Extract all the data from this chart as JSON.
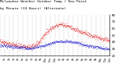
{
  "title_line1": "Milwaukee Weather Outdoor Temp / Dew Point",
  "title_line2": "by Minute",
  "title_line3": "(24 Hours) (Alternate)",
  "title_fontsize": 3.2,
  "bg_color": "#ffffff",
  "plot_bg_color": "#ffffff",
  "grid_color": "#888888",
  "temp_color": "#dd0000",
  "dew_color": "#0000cc",
  "ylabel_color": "#000000",
  "ylim": [
    20,
    80
  ],
  "xlim": [
    0,
    1440
  ],
  "yticks": [
    20,
    30,
    40,
    50,
    60,
    70,
    80
  ],
  "ytick_labels": [
    "20",
    "30",
    "40",
    "50",
    "60",
    "70",
    "80"
  ],
  "marker_size": 0.5,
  "temp_profile": [
    [
      0,
      42
    ],
    [
      60,
      40
    ],
    [
      120,
      38
    ],
    [
      180,
      37
    ],
    [
      240,
      35
    ],
    [
      300,
      34
    ],
    [
      360,
      33
    ],
    [
      420,
      34
    ],
    [
      480,
      37
    ],
    [
      540,
      44
    ],
    [
      570,
      49
    ],
    [
      600,
      53
    ],
    [
      630,
      57
    ],
    [
      660,
      60
    ],
    [
      690,
      62
    ],
    [
      720,
      64
    ],
    [
      750,
      65
    ],
    [
      780,
      66
    ],
    [
      810,
      66
    ],
    [
      840,
      65
    ],
    [
      870,
      64
    ],
    [
      900,
      63
    ],
    [
      930,
      62
    ],
    [
      960,
      60
    ],
    [
      990,
      58
    ],
    [
      1020,
      57
    ],
    [
      1050,
      55
    ],
    [
      1080,
      54
    ],
    [
      1110,
      53
    ],
    [
      1140,
      52
    ],
    [
      1200,
      50
    ],
    [
      1260,
      48
    ],
    [
      1320,
      46
    ],
    [
      1380,
      44
    ],
    [
      1440,
      42
    ]
  ],
  "dew_profile": [
    [
      0,
      35
    ],
    [
      60,
      35
    ],
    [
      120,
      34
    ],
    [
      180,
      33
    ],
    [
      240,
      32
    ],
    [
      300,
      32
    ],
    [
      360,
      31
    ],
    [
      420,
      31
    ],
    [
      480,
      33
    ],
    [
      540,
      34
    ],
    [
      570,
      35
    ],
    [
      600,
      36
    ],
    [
      630,
      37
    ],
    [
      660,
      38
    ],
    [
      690,
      39
    ],
    [
      720,
      40
    ],
    [
      750,
      41
    ],
    [
      780,
      41
    ],
    [
      810,
      41
    ],
    [
      840,
      41
    ],
    [
      870,
      41
    ],
    [
      900,
      41
    ],
    [
      930,
      41
    ],
    [
      960,
      40
    ],
    [
      990,
      40
    ],
    [
      1020,
      39
    ],
    [
      1050,
      38
    ],
    [
      1080,
      37
    ],
    [
      1110,
      36
    ],
    [
      1140,
      35
    ],
    [
      1200,
      34
    ],
    [
      1260,
      33
    ],
    [
      1320,
      32
    ],
    [
      1380,
      31
    ],
    [
      1440,
      30
    ]
  ]
}
